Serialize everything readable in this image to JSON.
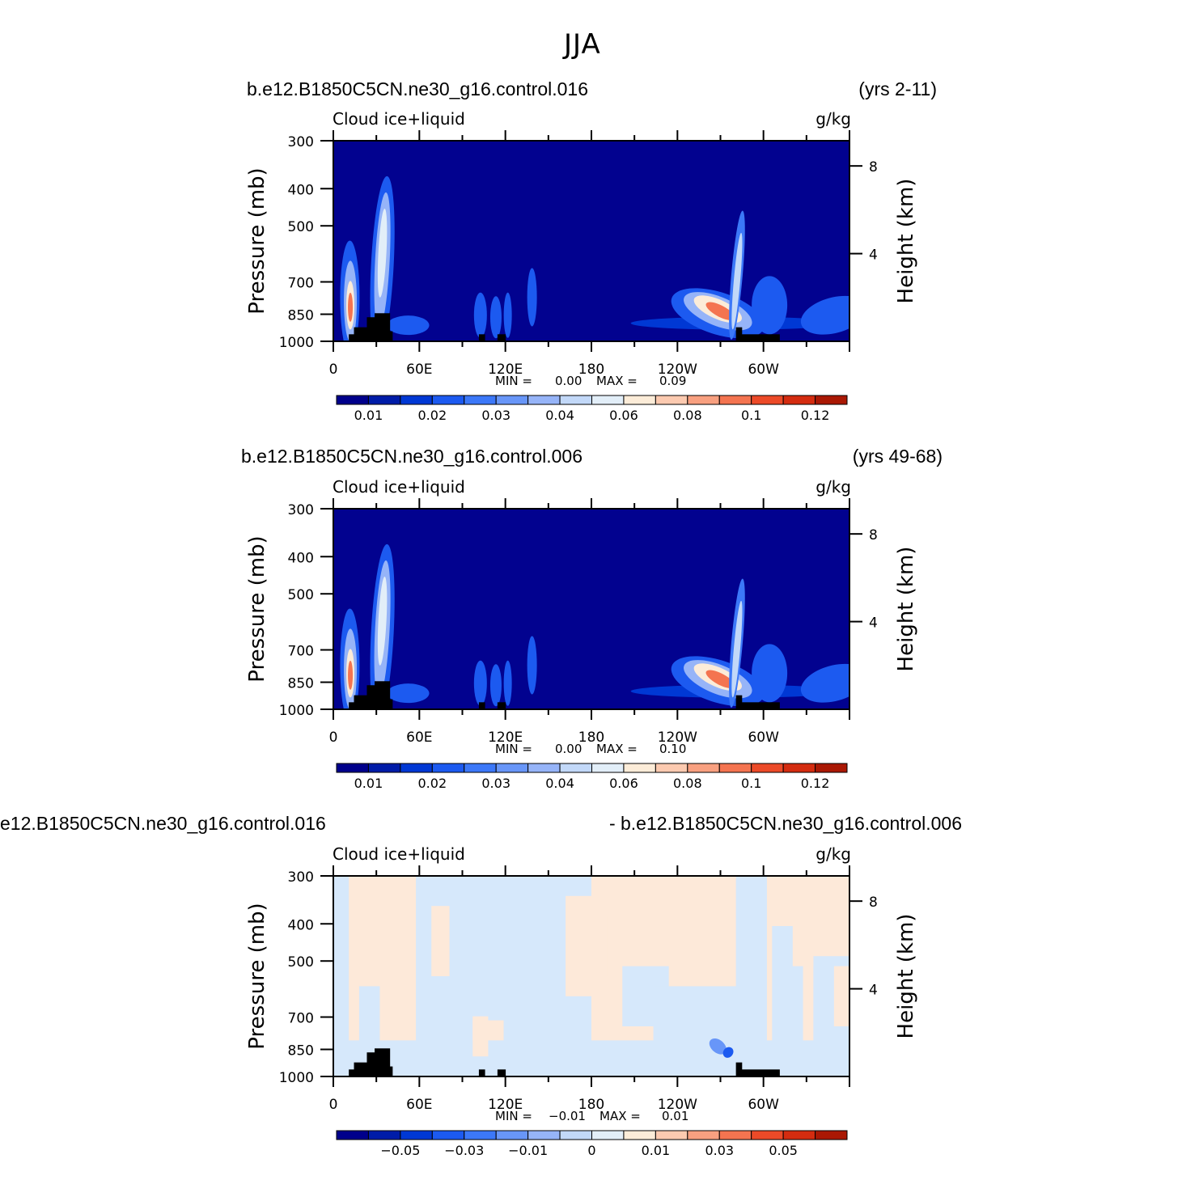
{
  "figure_title": "JJA",
  "colors": {
    "ocean_background": "#02028f",
    "diff_cool": "#d6e8fb",
    "diff_warm": "#fde9d9",
    "land_mask": "#000000"
  },
  "colorbar_colors": [
    "#00008b",
    "#001ca8",
    "#0038d4",
    "#1c5af0",
    "#3c78f8",
    "#6896f8",
    "#96b4f8",
    "#c2d8f8",
    "#e2eef8",
    "#fcecd8",
    "#fccab0",
    "#f8a080",
    "#f47450",
    "#ec4a28",
    "#d42c10",
    "#aa1804",
    "#780000"
  ],
  "chart_data": [
    {
      "type": "heatmap",
      "title": "b.e12.B1850C5CN.ne30_g16.control.016",
      "right_title": "(yrs 2-11)",
      "variable_label": "Cloud ice+liquid",
      "units_label": "g/kg",
      "ylabel": "Pressure (mb)",
      "ylabel_right": "Height (km)",
      "x_ticks": [
        "0",
        "60E",
        "120E",
        "180",
        "120W",
        "60W"
      ],
      "y_ticks": [
        "300",
        "400",
        "500",
        "700",
        "850",
        "1000"
      ],
      "y_right_ticks": [
        "8",
        "4"
      ],
      "min_label": "MIN =",
      "min_value": "0.00",
      "max_label": "MAX =",
      "max_value": "0.09",
      "colorbar_labels": [
        "0.01",
        "0.02",
        "0.03",
        "0.04",
        "0.06",
        "0.08",
        "0.1",
        "0.12"
      ],
      "xlim": [
        0,
        360
      ],
      "ylim": [
        1000,
        300
      ]
    },
    {
      "type": "heatmap",
      "title": "b.e12.B1850C5CN.ne30_g16.control.006",
      "right_title": "(yrs 49-68)",
      "variable_label": "Cloud ice+liquid",
      "units_label": "g/kg",
      "ylabel": "Pressure (mb)",
      "ylabel_right": "Height (km)",
      "x_ticks": [
        "0",
        "60E",
        "120E",
        "180",
        "120W",
        "60W"
      ],
      "y_ticks": [
        "300",
        "400",
        "500",
        "700",
        "850",
        "1000"
      ],
      "y_right_ticks": [
        "8",
        "4"
      ],
      "min_label": "MIN =",
      "min_value": "0.00",
      "max_label": "MAX =",
      "max_value": "0.10",
      "colorbar_labels": [
        "0.01",
        "0.02",
        "0.03",
        "0.04",
        "0.06",
        "0.08",
        "0.1",
        "0.12"
      ],
      "xlim": [
        0,
        360
      ],
      "ylim": [
        1000,
        300
      ]
    },
    {
      "type": "heatmap",
      "title": "e12.B1850C5CN.ne30_g16.control.016",
      "right_title": "- b.e12.B1850C5CN.ne30_g16.control.006",
      "variable_label": "Cloud ice+liquid",
      "units_label": "g/kg",
      "ylabel": "Pressure (mb)",
      "ylabel_right": "Height (km)",
      "x_ticks": [
        "0",
        "60E",
        "120E",
        "180",
        "120W",
        "60W"
      ],
      "y_ticks": [
        "300",
        "400",
        "500",
        "700",
        "850",
        "1000"
      ],
      "y_right_ticks": [
        "8",
        "4"
      ],
      "min_label": "MIN =",
      "min_value": "−0.01",
      "max_label": "MAX =",
      "max_value": "0.01",
      "colorbar_labels": [
        "−0.05",
        "−0.03",
        "−0.01",
        "0",
        "0.01",
        "0.03",
        "0.05"
      ],
      "xlim": [
        0,
        360
      ],
      "ylim": [
        1000,
        300
      ]
    }
  ]
}
